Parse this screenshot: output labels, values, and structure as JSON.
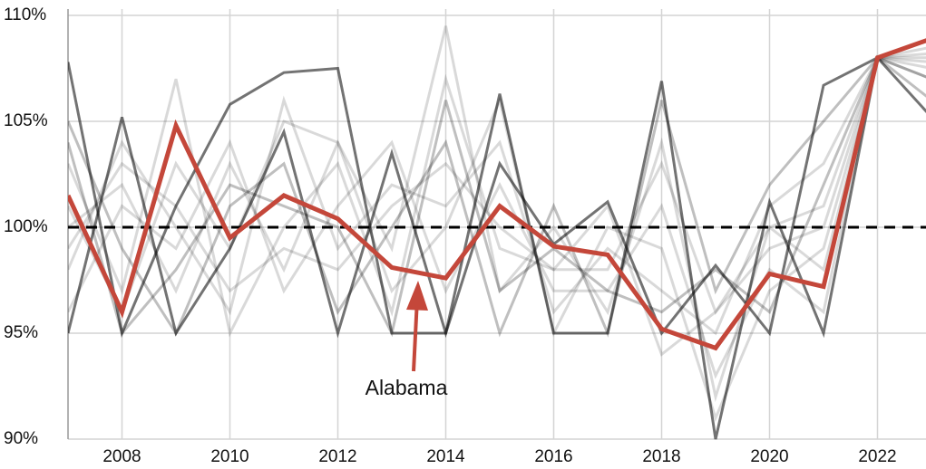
{
  "chart_data": {
    "type": "line",
    "x": [
      2007,
      2008,
      2009,
      2010,
      2011,
      2012,
      2013,
      2014,
      2015,
      2016,
      2017,
      2018,
      2019,
      2020,
      2021,
      2022,
      2023
    ],
    "xlim": [
      2007,
      2023
    ],
    "xticks": [
      2008,
      2010,
      2012,
      2014,
      2016,
      2018,
      2020,
      2022
    ],
    "ylim": [
      90,
      110
    ],
    "yticks": [
      {
        "value": 90,
        "label": "90%"
      },
      {
        "value": 95,
        "label": "95%"
      },
      {
        "value": 100,
        "label": "100%"
      },
      {
        "value": 105,
        "label": "105%"
      },
      {
        "value": 110,
        "label": "110%"
      }
    ],
    "grid": true,
    "reference_line": 100,
    "annotation": "Alabama",
    "series": [
      {
        "color": "rgba(0,0,0,0.55)",
        "values": [
          107.8,
          95,
          101,
          105.8,
          107.3,
          107.5,
          95,
          95,
          106.3,
          95,
          95,
          106.9,
          90,
          101.2,
          95,
          108,
          105.2
        ]
      },
      {
        "color": "rgba(0,0,0,0.55)",
        "values": [
          95,
          105.2,
          95,
          99,
          104.5,
          95,
          103.5,
          95,
          103,
          99.2,
          101.2,
          95,
          98.2,
          95,
          106.7,
          108,
          108.9
        ]
      },
      {
        "color": "rgba(0,0,0,0.15)",
        "values": [
          100,
          102,
          97,
          103,
          98,
          104,
          99,
          109.5,
          97,
          100,
          96,
          104,
          92,
          100,
          98,
          108,
          107.5
        ]
      },
      {
        "color": "rgba(0,0,0,0.15)",
        "values": [
          98,
          104,
          100,
          96,
          106,
          99,
          102,
          101,
          104,
          96,
          99,
          97,
          95,
          101,
          103,
          108,
          108
        ]
      },
      {
        "color": "rgba(0,0,0,0.15)",
        "values": [
          103,
          97,
          107,
          95,
          100,
          103,
          96,
          107,
          99,
          98,
          101,
          94,
          96,
          99,
          100,
          108,
          107
        ]
      },
      {
        "color": "rgba(0,0,0,0.15)",
        "values": [
          96,
          101,
          99,
          104,
          97,
          101,
          104,
          97,
          102,
          97,
          97,
          101,
          93,
          98,
          96,
          108,
          108.5
        ]
      },
      {
        "color": "rgba(0,0,0,0.25)",
        "values": [
          105,
          99,
          95,
          101,
          103,
          96,
          100,
          104,
          95,
          101,
          95,
          106,
          97,
          102,
          105,
          108,
          106
        ]
      },
      {
        "color": "rgba(0,0,0,0.15)",
        "values": [
          101,
          96,
          103,
          99,
          105,
          104,
          97,
          100,
          106,
          95,
          100,
          99,
          91,
          97,
          99,
          108,
          107.8
        ]
      },
      {
        "color": "rgba(0,0,0,0.15)",
        "values": [
          99,
          103,
          101,
          97,
          99,
          98,
          101,
          103,
          100,
          98,
          98,
          103,
          96,
          100,
          101,
          108,
          108.2
        ]
      },
      {
        "color": "rgba(0,0,0,0.25)",
        "values": [
          104,
          95,
          98,
          102,
          101,
          100,
          95,
          106,
          97,
          99,
          97,
          96,
          98,
          96,
          102,
          108,
          107
        ]
      },
      {
        "color": "#c4473a",
        "highlight": true,
        "values": [
          101.5,
          96,
          104.8,
          99.5,
          101.5,
          100.4,
          98.1,
          97.6,
          101,
          99.1,
          98.7,
          95.2,
          94.3,
          97.8,
          97.2,
          108,
          108.9
        ]
      }
    ]
  }
}
